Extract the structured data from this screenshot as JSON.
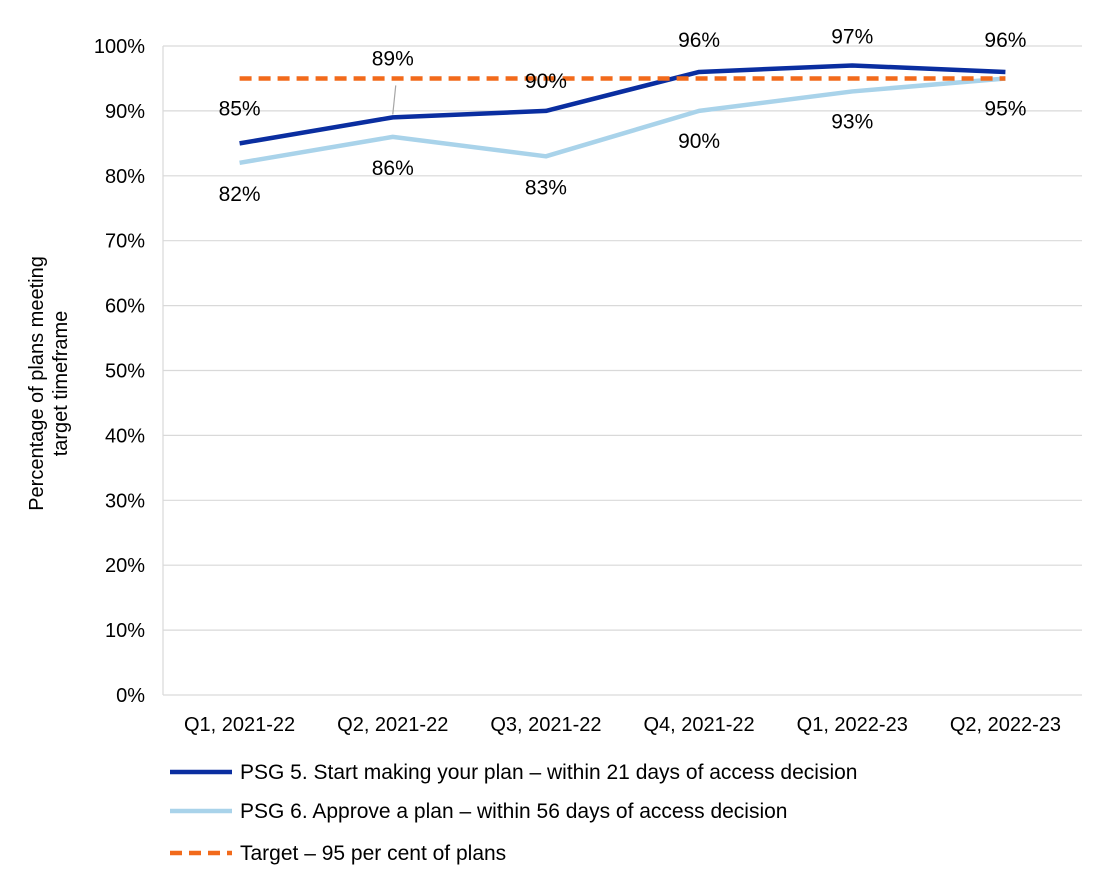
{
  "chart_data": {
    "type": "line",
    "ylabel": "Percentage of plans meeting target timeframe",
    "ylabel_lines": [
      "Percentage of plans meeting",
      "target timeframe"
    ],
    "xlabel": "",
    "ylim": [
      0,
      100
    ],
    "y_ticks": [
      0,
      10,
      20,
      30,
      40,
      50,
      60,
      70,
      80,
      90,
      100
    ],
    "y_tick_labels": [
      "0%",
      "10%",
      "20%",
      "30%",
      "40%",
      "50%",
      "60%",
      "70%",
      "80%",
      "90%",
      "100%"
    ],
    "grid": true,
    "legend_position": "bottom",
    "categories": [
      "Q1, 2021-22",
      "Q2, 2021-22",
      "Q3, 2021-22",
      "Q4, 2021-22",
      "Q1, 2022-23",
      "Q2, 2022-23"
    ],
    "series": [
      {
        "name": "PSG 5. Start making your plan – within 21 days of access decision",
        "values": [
          85,
          89,
          90,
          96,
          97,
          96
        ],
        "labels": [
          "85%",
          "89%",
          "90%",
          "96%",
          "97%",
          "96%"
        ],
        "color": "#0a2ea0",
        "style": "solid"
      },
      {
        "name": "PSG 6. Approve a plan – within 56 days of access decision",
        "values": [
          82,
          86,
          83,
          90,
          93,
          95
        ],
        "labels": [
          "82%",
          "86%",
          "83%",
          "90%",
          "93%",
          "95%"
        ],
        "color": "#a9d3ea",
        "style": "solid"
      },
      {
        "name": "Target – 95 per cent of plans",
        "values": [
          95,
          95,
          95,
          95,
          95,
          95
        ],
        "labels": [],
        "color": "#f26a1b",
        "style": "dashed"
      }
    ]
  }
}
